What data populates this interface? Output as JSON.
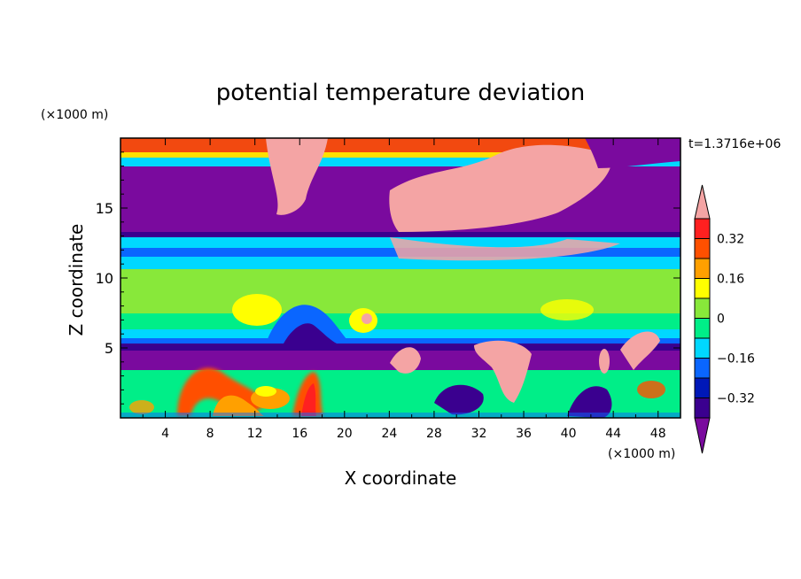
{
  "chart_data": {
    "type": "heatmap",
    "title": "potential temperature deviation",
    "xlabel": "X coordinate",
    "ylabel": "Z coordinate",
    "x_unit": "(×1000 m)",
    "y_unit": "(×1000 m)",
    "time_label": "t=1.3716e+06",
    "xlim": [
      0,
      50
    ],
    "ylim": [
      0,
      20
    ],
    "x_ticks": [
      "4",
      "8",
      "12",
      "16",
      "20",
      "24",
      "28",
      "32",
      "36",
      "40",
      "44",
      "48"
    ],
    "y_ticks": [
      "5",
      "10",
      "15"
    ],
    "colorbar": {
      "levels": [
        -0.4,
        -0.32,
        -0.24,
        -0.16,
        -0.08,
        0,
        0.08,
        0.16,
        0.24,
        0.32,
        0.4
      ],
      "tick_labels": [
        "0.32",
        "0.16",
        "0",
        "−0.16",
        "−0.32"
      ],
      "tick_values": [
        0.32,
        0.16,
        0,
        -0.16,
        -0.32
      ],
      "colors": [
        "#7a0a9e",
        "#3a008f",
        "#0018b8",
        "#0a66ff",
        "#00d8ff",
        "#00ee88",
        "#88e83a",
        "#ffff00",
        "#ffa000",
        "#ff5000",
        "#ff2020",
        "#f4a4a4"
      ]
    },
    "grid": false,
    "legend": "right"
  }
}
